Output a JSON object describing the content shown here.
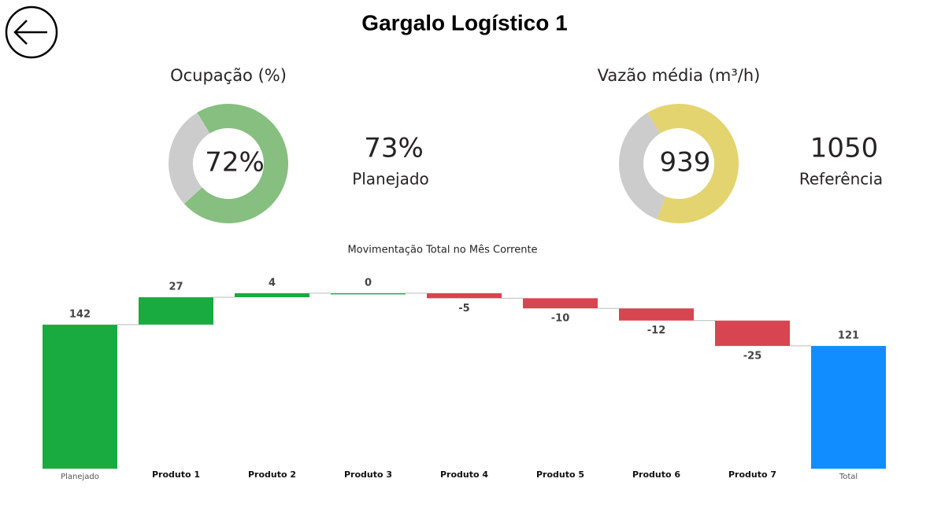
{
  "header": {
    "title": "Gargalo Logístico 1"
  },
  "chart_data": [
    {
      "type": "donut",
      "title": "Ocupação (%)",
      "values": [
        72,
        28
      ],
      "colors": [
        "#86bf7f",
        "#cccccc"
      ],
      "value_labels": [
        "72%"
      ],
      "kpi": {
        "value": "73%",
        "label": "Planejado"
      }
    },
    {
      "type": "donut",
      "title": "Vazão média (m³/h)",
      "values": [
        939,
        511
      ],
      "colors": [
        "#e3d46f",
        "#cccccc"
      ],
      "value_labels": [
        "939"
      ],
      "kpi": {
        "value": "1050",
        "label": "Referência"
      }
    },
    {
      "type": "waterfall",
      "title": "Movimentação Total no Mês Corrente",
      "categories": [
        "Planejado",
        "Produto 1",
        "Produto 2",
        "Produto 3",
        "Produto 4",
        "Produto 5",
        "Produto 6",
        "Produto 7",
        "Total"
      ],
      "values": [
        142,
        27,
        4,
        0,
        -5,
        -10,
        -12,
        -25,
        121
      ],
      "measure": [
        "absolute",
        "relative",
        "relative",
        "relative",
        "relative",
        "relative",
        "relative",
        "relative",
        "total"
      ],
      "colors": {
        "increase": "#1aab40",
        "decrease": "#d64550",
        "total": "#118dff"
      },
      "ylim": [
        0,
        200
      ]
    }
  ]
}
